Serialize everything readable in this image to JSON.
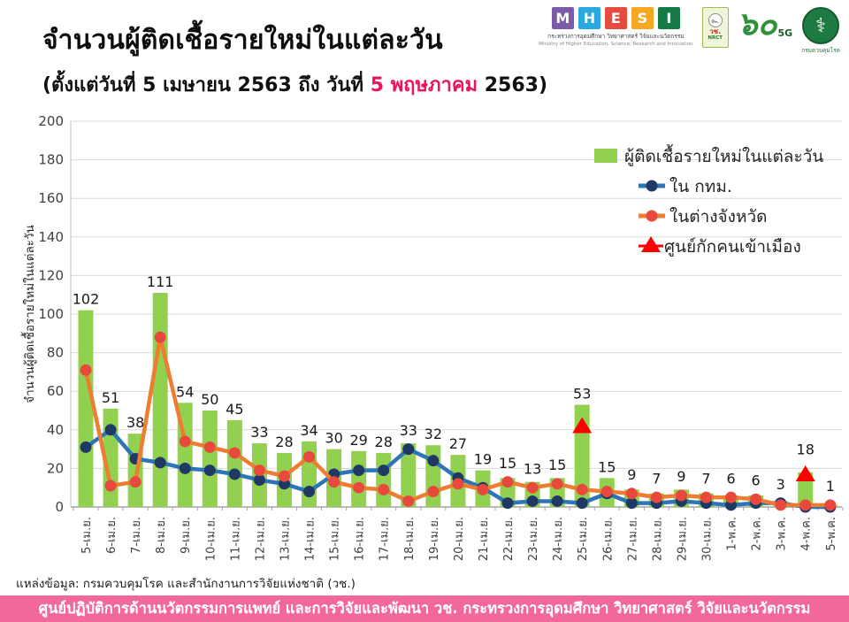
{
  "header": {
    "title": "จำนวนผู้ติดเชื้อรายใหม่ในแต่ละวัน",
    "subtitle_prefix": "(ตั้งแต่วันที่ 5 เมษายน 2563 ถึง วันที่ ",
    "subtitle_highlight": "5 พฤษภาคม",
    "subtitle_suffix": " 2563)",
    "highlight_color": "#e8175d"
  },
  "logos": {
    "mhesi": {
      "letters": [
        "M",
        "H",
        "E",
        "S",
        "I"
      ],
      "letter_colors": [
        "#7a5ca8",
        "#2aa9e0",
        "#e54b3f",
        "#f7a823",
        "#157a45"
      ],
      "thai_line": "กระทรวงการอุดมศึกษา วิทยาศาสตร์ วิจัยและนวัตกรรม",
      "english_line": "Ministry of Higher Education, Science, Research and Innovation"
    },
    "nrct": {
      "seal": "๛",
      "thai": "วช.",
      "abbr": "NRCT"
    },
    "anniversary": {
      "number": "๖๐",
      "suffix": "5G"
    },
    "ddc": {
      "symbol": "⚕",
      "name": "กรมควบคุมโรค"
    }
  },
  "chart_data": {
    "type": "bar",
    "title": "จำนวนผู้ติดเชื้อรายใหม่ในแต่ละวัน",
    "xlabel": "",
    "ylabel": "จำนวนผู้ติดเชื้อรายใหม่ในแต่ละวัน",
    "ylim": [
      0,
      200
    ],
    "ytick_step": 20,
    "grid": true,
    "legend_position": "inside-top-right",
    "categories": [
      "5-เม.ย.",
      "6-เม.ย.",
      "7-เม.ย.",
      "8-เม.ย.",
      "9-เม.ย.",
      "10-เม.ย.",
      "11-เม.ย.",
      "12-เม.ย.",
      "13-เม.ย.",
      "14-เม.ย.",
      "15-เม.ย.",
      "16-เม.ย.",
      "17-เม.ย.",
      "18-เม.ย.",
      "19-เม.ย.",
      "20-เม.ย.",
      "21-เม.ย.",
      "22-เม.ย.",
      "23-เม.ย.",
      "24-เม.ย.",
      "25-เม.ย.",
      "26-เม.ย.",
      "27-เม.ย.",
      "28-เม.ย.",
      "29-เม.ย.",
      "30-เม.ย.",
      "1-พ.ค.",
      "2-พ.ค.",
      "3-พ.ค.",
      "4-พ.ค.",
      "5-พ.ค."
    ],
    "series": [
      {
        "name": "ผู้ติดเชื้อรายใหม่ในแต่ละวัน",
        "type": "bar",
        "color": "#92d050",
        "values": [
          102,
          51,
          38,
          111,
          54,
          50,
          45,
          33,
          28,
          34,
          30,
          29,
          28,
          33,
          32,
          27,
          19,
          15,
          13,
          15,
          53,
          15,
          9,
          7,
          9,
          7,
          6,
          6,
          3,
          18,
          1
        ],
        "labels_shown": true
      },
      {
        "name": "ใน กทม.",
        "type": "line",
        "color": "#2e75b6",
        "marker_color": "#1f3864",
        "values": [
          31,
          40,
          25,
          23,
          20,
          19,
          17,
          14,
          12,
          8,
          17,
          19,
          19,
          30,
          24,
          15,
          10,
          2,
          3,
          3,
          2,
          7,
          2,
          2,
          3,
          2,
          1,
          2,
          2,
          0,
          0
        ]
      },
      {
        "name": "ในต่างจังหวัด",
        "type": "line",
        "color": "#ed7d31",
        "marker_color": "#e8493c",
        "values": [
          71,
          11,
          13,
          88,
          34,
          31,
          28,
          19,
          16,
          26,
          13,
          10,
          9,
          3,
          8,
          12,
          9,
          13,
          10,
          12,
          9,
          8,
          7,
          5,
          6,
          5,
          5,
          4,
          1,
          1,
          1
        ]
      },
      {
        "name": "ศูนย์กักคนเข้าเมือง",
        "type": "triangle",
        "color": "#ff0000",
        "values": [
          null,
          null,
          null,
          null,
          null,
          null,
          null,
          null,
          null,
          null,
          null,
          null,
          null,
          null,
          null,
          null,
          null,
          null,
          null,
          null,
          42,
          null,
          null,
          null,
          null,
          null,
          null,
          null,
          null,
          17,
          null
        ]
      }
    ]
  },
  "source": "แหล่งข้อมูล: กรมควบคุมโรค และสำนักงานการวิจัยแห่งชาติ (วช.)",
  "footer": {
    "text": "ศูนย์ปฏิบัติการด้านนวัตกรรมการแพทย์ และการวิจัยและพัฒนา  วช.    กระทรวงการอุดมศึกษา วิทยาศาสตร์ วิจัยและนวัตกรรม",
    "bg_color": "#f2689c"
  }
}
